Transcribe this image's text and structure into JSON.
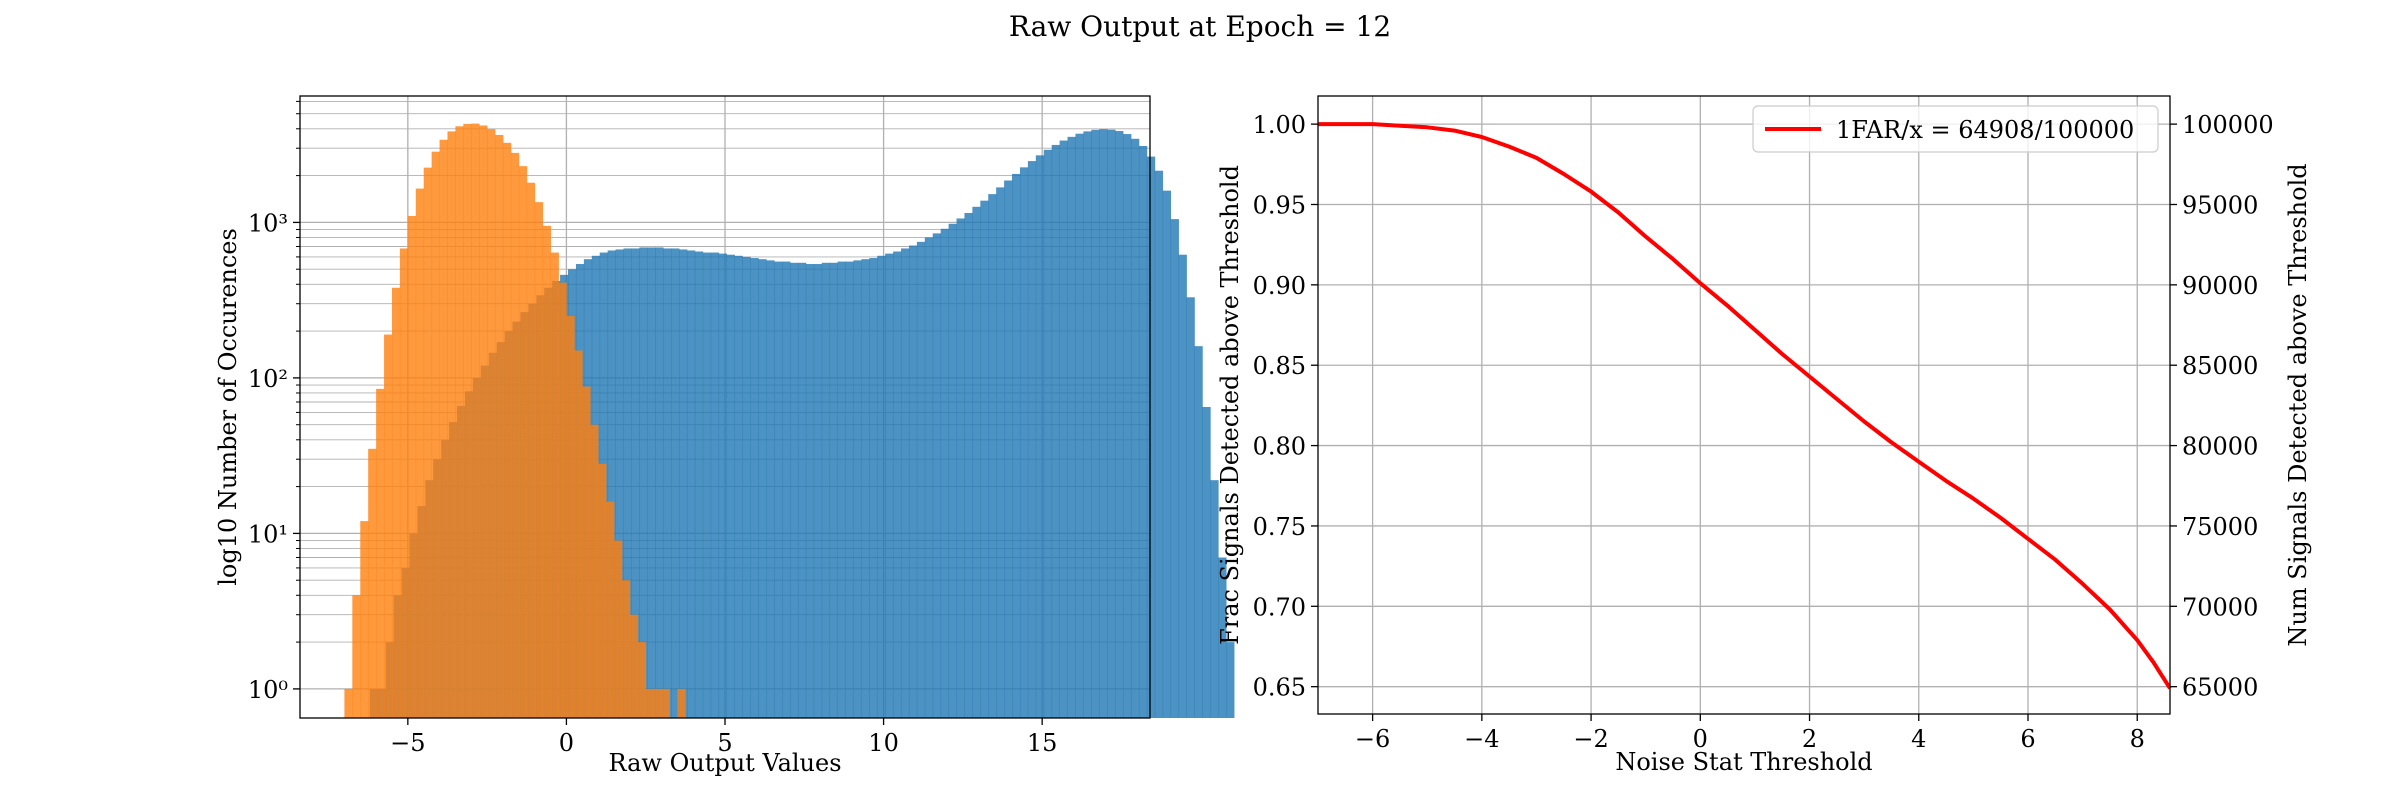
{
  "figure": {
    "suptitle": "Raw Output at Epoch = 12"
  },
  "chart_data": [
    {
      "type": "histogram",
      "xlabel": "Raw Output Values",
      "ylabel": "log10 Number of Occurences",
      "yscale": "log",
      "xlim": [
        -8.4,
        18.4
      ],
      "ylim": [
        0.65,
        6500
      ],
      "x_ticks": [
        -5,
        0,
        5,
        10,
        15
      ],
      "x_tick_labels": [
        "−5",
        "0",
        "5",
        "10",
        "15"
      ],
      "y_ticks": [
        1,
        10,
        100,
        1000
      ],
      "y_tick_labels": [
        "10⁰",
        "10¹",
        "10²",
        "10³"
      ],
      "grid": true,
      "bin_width": 0.25,
      "series": [
        {
          "color": "#1f77b4",
          "alpha": 0.8,
          "start": -6.2,
          "counts": [
            1,
            1,
            2,
            4,
            6,
            10,
            15,
            22,
            30,
            40,
            52,
            66,
            82,
            100,
            120,
            145,
            170,
            200,
            230,
            265,
            300,
            340,
            380,
            420,
            460,
            500,
            540,
            580,
            610,
            640,
            660,
            670,
            680,
            680,
            690,
            690,
            690,
            680,
            680,
            670,
            660,
            650,
            640,
            640,
            630,
            620,
            610,
            600,
            590,
            580,
            570,
            560,
            560,
            550,
            550,
            540,
            540,
            550,
            550,
            560,
            560,
            570,
            580,
            590,
            610,
            630,
            650,
            680,
            710,
            750,
            800,
            850,
            910,
            980,
            1060,
            1150,
            1260,
            1380,
            1520,
            1680,
            1860,
            2050,
            2260,
            2480,
            2700,
            2930,
            3150,
            3360,
            3550,
            3720,
            3850,
            3940,
            3980,
            3950,
            3870,
            3700,
            3450,
            3100,
            2650,
            2150,
            1600,
            1050,
            620,
            330,
            160,
            65,
            22,
            7,
            2
          ]
        },
        {
          "color": "#ff7f0e",
          "alpha": 0.8,
          "start": -7.0,
          "counts": [
            1,
            4,
            12,
            35,
            85,
            190,
            380,
            680,
            1100,
            1650,
            2250,
            2850,
            3400,
            3850,
            4150,
            4300,
            4320,
            4200,
            3980,
            3650,
            3250,
            2800,
            2300,
            1800,
            1350,
            950,
            640,
            410,
            250,
            150,
            88,
            50,
            28,
            16,
            9,
            5,
            3,
            2,
            1,
            1,
            1,
            0,
            1
          ]
        }
      ]
    },
    {
      "type": "line",
      "xlabel": "Noise Stat Threshold",
      "ylabel": "Frac Signals Detected above Threshold",
      "ylabel_right": "Num Signals Detected above Threshold",
      "xlim": [
        -7.0,
        8.6
      ],
      "ylim": [
        0.633,
        1.0175
      ],
      "ylim_right": [
        63300,
        101750
      ],
      "x_ticks": [
        -6,
        -4,
        -2,
        0,
        2,
        4,
        6,
        8
      ],
      "x_tick_labels": [
        "−6",
        "−4",
        "−2",
        "0",
        "2",
        "4",
        "6",
        "8"
      ],
      "y_ticks": [
        0.65,
        0.7,
        0.75,
        0.8,
        0.85,
        0.9,
        0.95,
        1.0
      ],
      "y_tick_labels": [
        "0.65",
        "0.70",
        "0.75",
        "0.80",
        "0.85",
        "0.90",
        "0.95",
        "1.00"
      ],
      "y_ticks_right": [
        65000,
        70000,
        75000,
        80000,
        85000,
        90000,
        95000,
        100000
      ],
      "y_tick_labels_right": [
        "65000",
        "70000",
        "75000",
        "80000",
        "85000",
        "90000",
        "95000",
        "100000"
      ],
      "grid": true,
      "legend_position": "top-right",
      "series": [
        {
          "name": "1FAR/x = 64908/100000",
          "color": "#ff0000",
          "x": [
            -7.0,
            -6.0,
            -5.5,
            -5.0,
            -4.5,
            -4.0,
            -3.5,
            -3.0,
            -2.5,
            -2.0,
            -1.5,
            -1.0,
            -0.5,
            0.0,
            0.5,
            1.0,
            1.5,
            2.0,
            2.5,
            3.0,
            3.5,
            4.0,
            4.5,
            5.0,
            5.5,
            6.0,
            6.5,
            7.0,
            7.5,
            8.0,
            8.3,
            8.6
          ],
          "y": [
            1.0,
            1.0,
            0.999,
            0.998,
            0.996,
            0.992,
            0.986,
            0.979,
            0.969,
            0.958,
            0.945,
            0.93,
            0.916,
            0.901,
            0.887,
            0.872,
            0.857,
            0.843,
            0.829,
            0.815,
            0.802,
            0.79,
            0.778,
            0.767,
            0.755,
            0.742,
            0.729,
            0.714,
            0.698,
            0.679,
            0.665,
            0.649
          ]
        }
      ]
    }
  ]
}
